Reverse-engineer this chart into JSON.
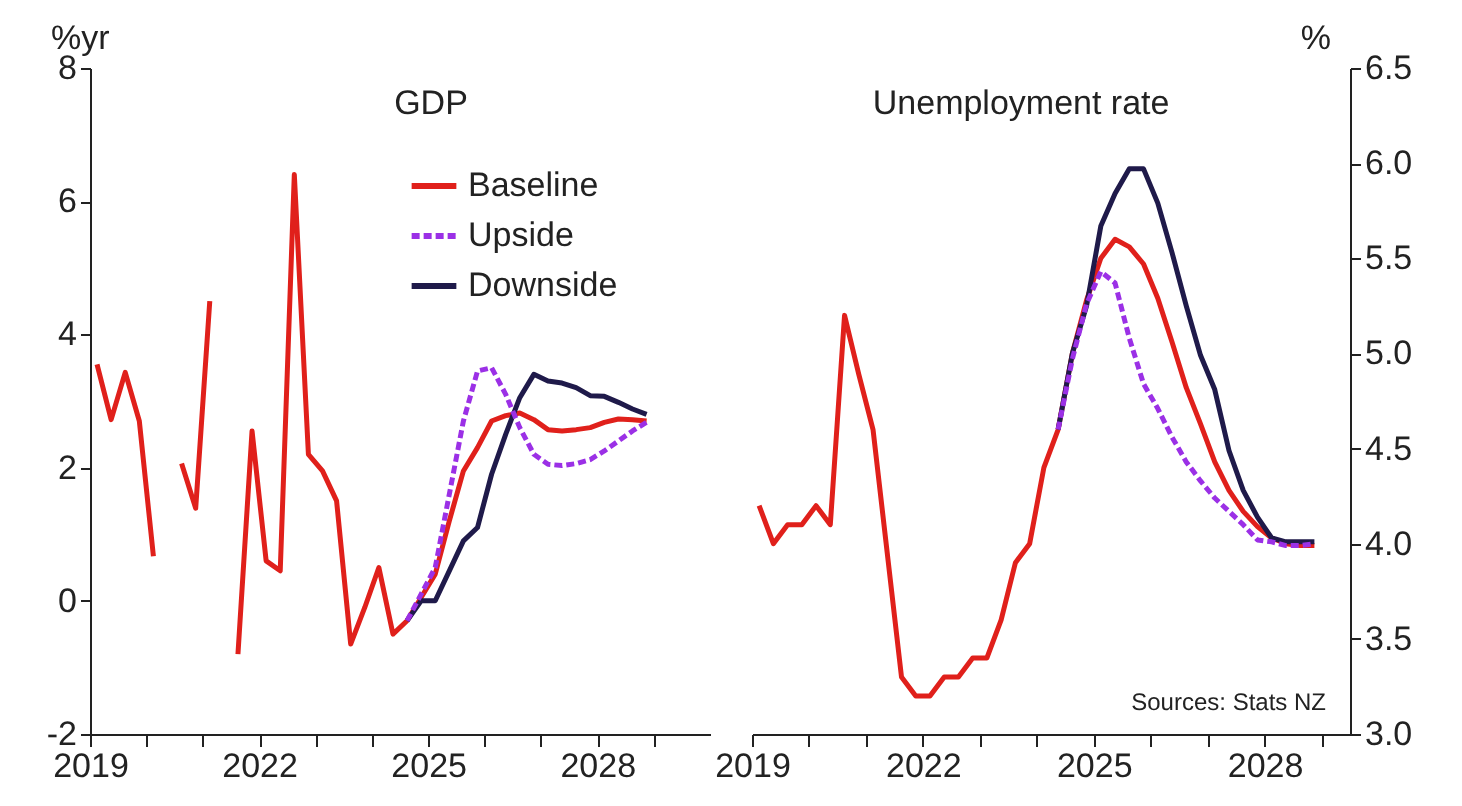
{
  "chart_data": [
    {
      "type": "line",
      "title": "GDP",
      "ylabel": "%yr",
      "legend": "top right",
      "grid": false,
      "marker": "none",
      "x": [
        2019.125,
        2019.375,
        2019.625,
        2019.875,
        2020.125,
        2020.375,
        2020.625,
        2020.875,
        2021.125,
        2021.375,
        2021.625,
        2021.875,
        2022.125,
        2022.375,
        2022.625,
        2022.875,
        2023.125,
        2023.375,
        2023.625,
        2023.875,
        2024.125,
        2024.375,
        2024.625,
        2024.875,
        2025.125,
        2025.375,
        2025.625,
        2025.875,
        2026.125,
        2026.375,
        2026.625,
        2026.875,
        2027.125,
        2027.375,
        2027.625,
        2027.875,
        2028.125,
        2028.375,
        2028.625,
        2028.875
      ],
      "xlim": [
        2019,
        2030
      ],
      "xticks": [
        2019,
        {
          "value": 2020,
          "label": null
        },
        {
          "value": 2021,
          "label": null
        },
        2022,
        {
          "value": 2023,
          "label": null
        },
        {
          "value": 2024,
          "label": null
        },
        2025,
        {
          "value": 2026,
          "label": null
        },
        {
          "value": 2027,
          "label": null
        },
        2028,
        {
          "value": 2029,
          "label": null
        }
      ],
      "ylim": [
        -2,
        8
      ],
      "yticks": [
        -2,
        0,
        2,
        4,
        6,
        8
      ],
      "series": [
        {
          "name": "Baseline",
          "color": "#e0201b",
          "line_style": "solid",
          "values": [
            3.55,
            2.72,
            3.43,
            2.7,
            0.67,
            null,
            2.06,
            1.39,
            4.5,
            null,
            -0.8,
            2.55,
            0.6,
            0.45,
            6.4,
            2.2,
            1.95,
            1.5,
            -0.65,
            -0.1,
            0.5,
            -0.5,
            -0.3,
            0.05,
            0.4,
            1.2,
            1.95,
            2.3,
            2.7,
            2.78,
            2.82,
            2.72,
            2.57,
            2.55,
            2.57,
            2.6,
            2.68,
            2.73,
            2.72,
            2.7
          ]
        },
        {
          "name": "Upside",
          "color": "#9b30e6",
          "line_style": "dashed",
          "values": [
            null,
            null,
            null,
            null,
            null,
            null,
            null,
            null,
            null,
            null,
            null,
            null,
            null,
            null,
            null,
            null,
            null,
            null,
            null,
            null,
            null,
            null,
            -0.3,
            0.1,
            0.5,
            1.6,
            2.7,
            3.45,
            3.5,
            3.1,
            2.6,
            2.2,
            2.05,
            2.03,
            2.06,
            2.12,
            2.25,
            2.4,
            2.55,
            2.68
          ]
        },
        {
          "name": "Downside",
          "color": "#1f1a4a",
          "line_style": "solid",
          "values": [
            null,
            null,
            null,
            null,
            null,
            null,
            null,
            null,
            null,
            null,
            null,
            null,
            null,
            null,
            null,
            null,
            null,
            null,
            null,
            null,
            null,
            null,
            -0.3,
            0.0,
            0.0,
            0.45,
            0.9,
            1.1,
            1.9,
            2.5,
            3.05,
            3.4,
            3.3,
            3.27,
            3.2,
            3.08,
            3.07,
            2.98,
            2.88,
            2.8
          ]
        }
      ]
    },
    {
      "type": "line",
      "title": "Unemployment rate",
      "ylabel": "%",
      "legend": false,
      "grid": false,
      "marker": "none",
      "annotations": [
        "Sources: Stats NZ"
      ],
      "x": [
        2019.125,
        2019.375,
        2019.625,
        2019.875,
        2020.125,
        2020.375,
        2020.625,
        2020.875,
        2021.125,
        2021.375,
        2021.625,
        2021.875,
        2022.125,
        2022.375,
        2022.625,
        2022.875,
        2023.125,
        2023.375,
        2023.625,
        2023.875,
        2024.125,
        2024.375,
        2024.625,
        2024.875,
        2025.125,
        2025.375,
        2025.625,
        2025.875,
        2026.125,
        2026.375,
        2026.625,
        2026.875,
        2027.125,
        2027.375,
        2027.625,
        2027.875,
        2028.125,
        2028.375,
        2028.625,
        2028.875
      ],
      "xlim": [
        2019,
        2029.5
      ],
      "xticks": [
        2019,
        {
          "value": 2020,
          "label": null
        },
        {
          "value": 2021,
          "label": null
        },
        2022,
        {
          "value": 2023,
          "label": null
        },
        {
          "value": 2024,
          "label": null
        },
        2025,
        {
          "value": 2026,
          "label": null
        },
        {
          "value": 2027,
          "label": null
        },
        2028,
        {
          "value": 2029,
          "label": null
        }
      ],
      "ylim": [
        3.0,
        6.5
      ],
      "yticks": [
        {
          "value": 3,
          "label": "3.0"
        },
        3.5,
        {
          "value": 4,
          "label": "4.0"
        },
        4.5,
        {
          "value": 5,
          "label": "5.0"
        },
        5.5,
        {
          "value": 6,
          "label": "6.0"
        },
        6.5
      ],
      "series": [
        {
          "color": "#e0201b",
          "line_style": "solid",
          "values": [
            4.2,
            4.0,
            4.1,
            4.1,
            4.2,
            4.1,
            5.2,
            4.89,
            4.6,
            3.95,
            3.3,
            3.2,
            3.2,
            3.3,
            3.3,
            3.4,
            3.4,
            3.6,
            3.9,
            4.0,
            4.4,
            4.6,
            5.0,
            5.28,
            5.5,
            5.6,
            5.56,
            5.47,
            5.29,
            5.06,
            4.82,
            4.63,
            4.43,
            4.28,
            4.17,
            4.09,
            4.03,
            4.0,
            3.99,
            3.99
          ]
        },
        {
          "color": "#9b30e6",
          "line_style": "dashed",
          "values": [
            null,
            null,
            null,
            null,
            null,
            null,
            null,
            null,
            null,
            null,
            null,
            null,
            null,
            null,
            null,
            null,
            null,
            null,
            null,
            null,
            null,
            4.6,
            4.97,
            5.26,
            5.43,
            5.37,
            5.08,
            4.84,
            4.71,
            4.56,
            4.43,
            4.33,
            4.24,
            4.17,
            4.1,
            4.02,
            4.01,
            3.99,
            3.99,
            4.0
          ]
        },
        {
          "color": "#1f1a4a",
          "line_style": "solid",
          "values": [
            null,
            null,
            null,
            null,
            null,
            null,
            null,
            null,
            null,
            null,
            null,
            null,
            null,
            null,
            null,
            null,
            null,
            null,
            null,
            null,
            null,
            4.6,
            5.0,
            5.25,
            5.67,
            5.84,
            5.97,
            5.97,
            5.79,
            5.53,
            5.25,
            4.99,
            4.81,
            4.49,
            4.28,
            4.14,
            4.03,
            4.01,
            4.01,
            4.01
          ]
        }
      ]
    }
  ]
}
